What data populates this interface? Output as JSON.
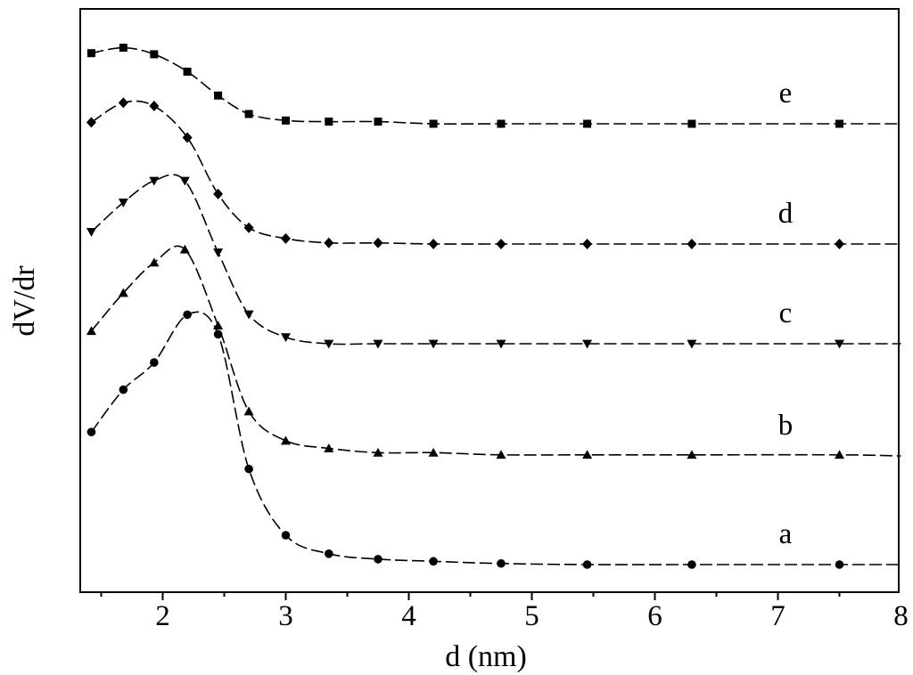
{
  "chart_data": {
    "type": "line",
    "xlabel": "d (nm)",
    "ylabel": "dV/dr",
    "xlim": [
      1.35,
      8
    ],
    "x_ticks": [
      "2",
      "3",
      "4",
      "5",
      "6",
      "7",
      "8"
    ],
    "y_ticks": [],
    "grid": false,
    "legend": "none",
    "stack_offset": 1.0,
    "series": [
      {
        "name": "a",
        "marker": "circle",
        "x": [
          1.42,
          1.68,
          1.93,
          2.2,
          2.45,
          2.7,
          3.0,
          3.35,
          3.75,
          4.2,
          4.75,
          5.45,
          6.3,
          7.5
        ],
        "y": [
          1.22,
          1.61,
          1.86,
          2.3,
          2.12,
          0.88,
          0.27,
          0.1,
          0.05,
          0.03,
          0.01,
          0.0,
          0.0,
          0.0
        ],
        "end_x": 8.0,
        "end_y": 0.0
      },
      {
        "name": "b",
        "marker": "triangle-up",
        "x": [
          1.42,
          1.68,
          1.93,
          2.18,
          2.45,
          2.7,
          3.0,
          3.35,
          3.75,
          4.2,
          4.75,
          5.45,
          6.3,
          7.5
        ],
        "y": [
          1.15,
          1.5,
          1.78,
          1.9,
          1.2,
          0.41,
          0.14,
          0.07,
          0.03,
          0.03,
          0.01,
          0.01,
          0.01,
          0.01
        ],
        "end_x": 8.0,
        "end_y": 0.0
      },
      {
        "name": "c",
        "marker": "triangle-down",
        "x": [
          1.42,
          1.68,
          1.93,
          2.18,
          2.45,
          2.7,
          3.0,
          3.35,
          3.75,
          4.2,
          4.75,
          5.45,
          6.3,
          7.5
        ],
        "y": [
          1.03,
          1.3,
          1.5,
          1.5,
          0.84,
          0.27,
          0.06,
          0.0,
          0.0,
          0.0,
          0.0,
          0.0,
          0.0,
          0.0
        ],
        "end_x": 8.0,
        "end_y": 0.0
      },
      {
        "name": "d",
        "marker": "diamond",
        "x": [
          1.42,
          1.68,
          1.93,
          2.2,
          2.45,
          2.7,
          3.0,
          3.35,
          3.75,
          4.2,
          4.75,
          5.45,
          6.3,
          7.5
        ],
        "y": [
          1.12,
          1.3,
          1.27,
          0.98,
          0.46,
          0.15,
          0.05,
          0.01,
          0.01,
          0.0,
          0.0,
          0.0,
          0.0,
          0.0
        ],
        "end_x": 8.0,
        "end_y": 0.0
      },
      {
        "name": "e",
        "marker": "square",
        "x": [
          1.42,
          1.68,
          1.93,
          2.2,
          2.45,
          2.7,
          3.0,
          3.35,
          3.75,
          4.2,
          4.75,
          5.45,
          6.3,
          7.5
        ],
        "y": [
          0.65,
          0.7,
          0.64,
          0.48,
          0.26,
          0.09,
          0.03,
          0.02,
          0.02,
          0.0,
          0.0,
          0.0,
          0.0,
          0.0
        ],
        "end_x": 8.0,
        "end_y": 0.0
      }
    ]
  }
}
